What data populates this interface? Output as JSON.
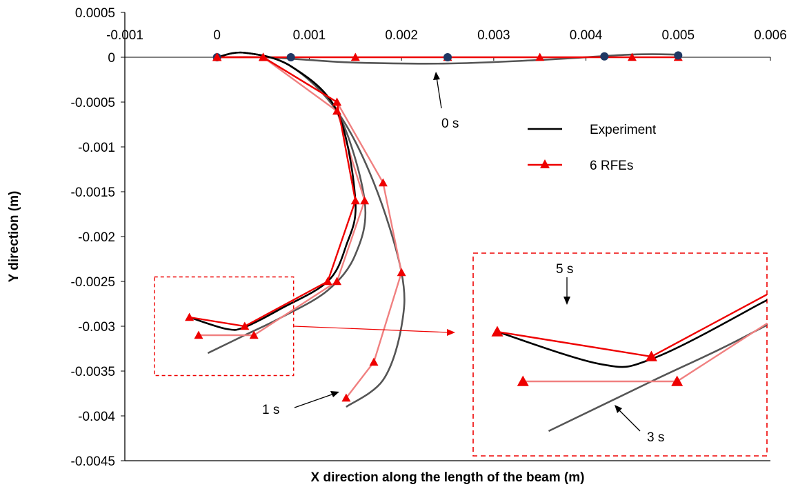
{
  "chart_data": {
    "type": "line",
    "xlabel": "X direction along the length of the beam (m)",
    "ylabel": "Y direction (m)",
    "xlim": [
      -0.001,
      0.006
    ],
    "ylim": [
      -0.0045,
      0.0005
    ],
    "x_ticks": [
      "-0.001",
      "0",
      "0.001",
      "0.002",
      "0.003",
      "0.004",
      "0.005",
      "0.006"
    ],
    "y_ticks": [
      "0.0005",
      "0",
      "-0.0005",
      "-0.001",
      "-0.0015",
      "-0.002",
      "-0.0025",
      "-0.003",
      "-0.0035",
      "-0.004",
      "-0.0045"
    ],
    "legend": {
      "position": "right",
      "entries": [
        {
          "label": "Experiment",
          "color": "#000000",
          "marker": "none"
        },
        {
          "label": "6 RFEs",
          "color": "#ee0000",
          "marker": "triangle"
        }
      ]
    },
    "annotations": [
      "0 s",
      "1 s",
      "3 s",
      "5 s"
    ],
    "series": [
      {
        "time": "0 s",
        "kind": "experiment",
        "color": "#555555",
        "x": [
          0,
          0.0005,
          0.001,
          0.0015,
          0.0025,
          0.0035,
          0.0045,
          0.005
        ],
        "y": [
          0,
          0,
          -3e-05,
          -6e-05,
          -7e-05,
          -3e-05,
          3e-05,
          3e-05
        ]
      },
      {
        "time": "0 s",
        "kind": "rfe",
        "color": "#ee0000",
        "marker": "triangle",
        "x": [
          0,
          0.0005,
          0.0015,
          0.0025,
          0.0035,
          0.0045,
          0.005
        ],
        "y": [
          0,
          0,
          0,
          0,
          0,
          0,
          0
        ]
      },
      {
        "time": "0 s",
        "kind": "measured-points",
        "color": "#1f3864",
        "marker": "circle",
        "x": [
          0,
          0.0008,
          0.0025,
          0.0042,
          0.005
        ],
        "y": [
          0,
          0,
          0,
          1e-05,
          2e-05
        ]
      },
      {
        "time": "1 s",
        "kind": "experiment",
        "color": "#555555",
        "x": [
          0,
          0.0003,
          0.0008,
          0.0013,
          0.0017,
          0.002,
          0.002,
          0.0018,
          0.0014
        ],
        "y": [
          0,
          5e-05,
          -0.0001,
          -0.0006,
          -0.0014,
          -0.0024,
          -0.003,
          -0.0036,
          -0.0039
        ]
      },
      {
        "time": "1 s",
        "kind": "rfe",
        "color": "#f08080",
        "marker": "triangle",
        "x": [
          0,
          0.0005,
          0.0013,
          0.0018,
          0.002,
          0.0017,
          0.0014
        ],
        "y": [
          0,
          0,
          -0.0005,
          -0.0014,
          -0.0024,
          -0.0034,
          -0.0038
        ]
      },
      {
        "time": "3 s",
        "kind": "experiment",
        "color": "#555555",
        "x": [
          0,
          0.0003,
          0.0008,
          0.0013,
          0.0016,
          0.0015,
          0.0012,
          0.0007,
          0.0003,
          -0.0001
        ],
        "y": [
          0,
          5e-05,
          -0.0001,
          -0.0006,
          -0.0016,
          -0.0022,
          -0.0026,
          -0.0029,
          -0.0031,
          -0.0033
        ]
      },
      {
        "time": "3 s",
        "kind": "rfe",
        "color": "#f08080",
        "marker": "triangle",
        "x": [
          0,
          0.0005,
          0.0013,
          0.0016,
          0.0013,
          0.0004,
          -0.0002
        ],
        "y": [
          0,
          0,
          -0.0006,
          -0.0016,
          -0.0025,
          -0.0031,
          -0.0031
        ]
      },
      {
        "time": "5 s",
        "kind": "experiment",
        "color": "#000000",
        "x": [
          0,
          0.0003,
          0.0008,
          0.0013,
          0.0015,
          0.0014,
          0.0012,
          0.0007,
          0.0003,
          0.0001,
          -0.0003
        ],
        "y": [
          0,
          5e-05,
          -0.0001,
          -0.0006,
          -0.0016,
          -0.0021,
          -0.0025,
          -0.0028,
          -0.00301,
          -0.00303,
          -0.0029
        ]
      },
      {
        "time": "5 s",
        "kind": "rfe",
        "color": "#ee0000",
        "marker": "triangle",
        "x": [
          0,
          0.0005,
          0.0013,
          0.0015,
          0.0012,
          0.0003,
          -0.0003
        ],
        "y": [
          0,
          0,
          -0.0005,
          -0.0016,
          -0.0025,
          -0.003,
          -0.0029
        ]
      }
    ]
  }
}
